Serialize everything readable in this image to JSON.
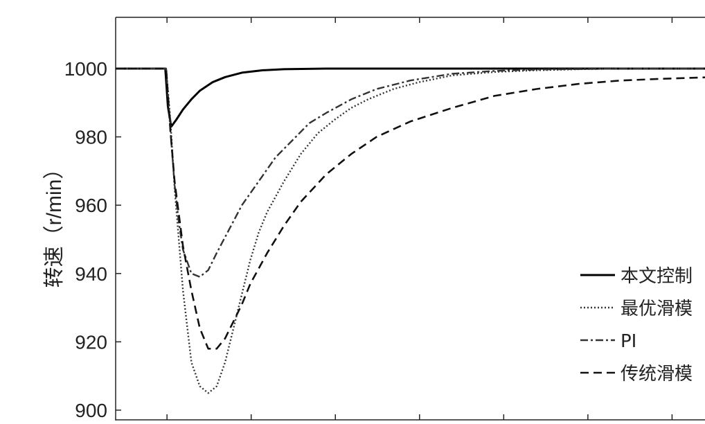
{
  "chart_data": {
    "type": "line",
    "title": "",
    "xlabel": "",
    "ylabel": "转速（r/min）",
    "ylim": [
      900,
      1015
    ],
    "xlim": [
      0,
      7.1
    ],
    "yticks": [
      900,
      920,
      940,
      960,
      980,
      1000
    ],
    "grid": false,
    "legend_position": "lower-right",
    "series": [
      {
        "name": "本文控制",
        "style": "solid",
        "color": "#000000",
        "x": [
          0,
          0.5,
          0.59,
          0.62,
          0.66,
          0.72,
          0.8,
          0.9,
          1.0,
          1.15,
          1.3,
          1.5,
          1.75,
          2.0,
          2.5,
          3.0,
          4.0,
          5.0,
          6.0,
          7.1
        ],
        "y": [
          1000,
          1000,
          1000,
          989,
          983,
          985,
          988,
          991,
          993.5,
          996,
          997.5,
          998.8,
          999.5,
          999.8,
          1000,
          1000,
          1000,
          1000,
          1000,
          1000
        ]
      },
      {
        "name": "最优滑模",
        "style": "dotted",
        "color": "#333333",
        "x": [
          0,
          0.5,
          0.6,
          0.65,
          0.7,
          0.8,
          0.9,
          1.0,
          1.1,
          1.2,
          1.3,
          1.4,
          1.5,
          1.6,
          1.7,
          1.8,
          2.0,
          2.2,
          2.4,
          2.6,
          2.8,
          3.0,
          3.3,
          3.6,
          4.0,
          4.5,
          5.0,
          5.5,
          6.0,
          6.5,
          7.1
        ],
        "y": [
          1000,
          1000,
          1000,
          985,
          965,
          935,
          914,
          907,
          905,
          907,
          914,
          924,
          934,
          944,
          952,
          958,
          967,
          975,
          981,
          985,
          988.5,
          991,
          994,
          996,
          998,
          999,
          999.5,
          999.8,
          1000,
          1000,
          1000
        ]
      },
      {
        "name": "PI",
        "style": "dashdot",
        "color": "#333333",
        "x": [
          0,
          0.5,
          0.6,
          0.65,
          0.7,
          0.75,
          0.8,
          0.9,
          1.0,
          1.1,
          1.2,
          1.35,
          1.5,
          1.7,
          1.9,
          2.1,
          2.3,
          2.5,
          2.8,
          3.1,
          3.5,
          4.0,
          4.5,
          5.0,
          6.0,
          7.1
        ],
        "y": [
          1000,
          1000,
          1000,
          982,
          966,
          955,
          947,
          940,
          939,
          941,
          946,
          953,
          960,
          967,
          974,
          979,
          984,
          987,
          991,
          994,
          996.5,
          998.5,
          999.3,
          999.7,
          1000,
          1000
        ]
      },
      {
        "name": "传统滑模",
        "style": "dashed",
        "color": "#111111",
        "x": [
          0,
          0.5,
          0.6,
          0.65,
          0.7,
          0.8,
          0.9,
          1.0,
          1.1,
          1.2,
          1.3,
          1.4,
          1.5,
          1.6,
          1.8,
          2.0,
          2.2,
          2.5,
          2.8,
          3.1,
          3.5,
          4.0,
          4.5,
          5.0,
          5.5,
          6.0,
          6.5,
          7.1
        ],
        "y": [
          1000,
          1000,
          1000,
          982,
          967,
          948,
          935,
          924,
          918,
          918,
          921,
          926,
          931,
          937,
          946,
          954,
          961,
          969,
          975,
          980,
          984.5,
          988.5,
          992,
          994,
          995.5,
          996.5,
          997,
          997.5
        ]
      }
    ]
  }
}
